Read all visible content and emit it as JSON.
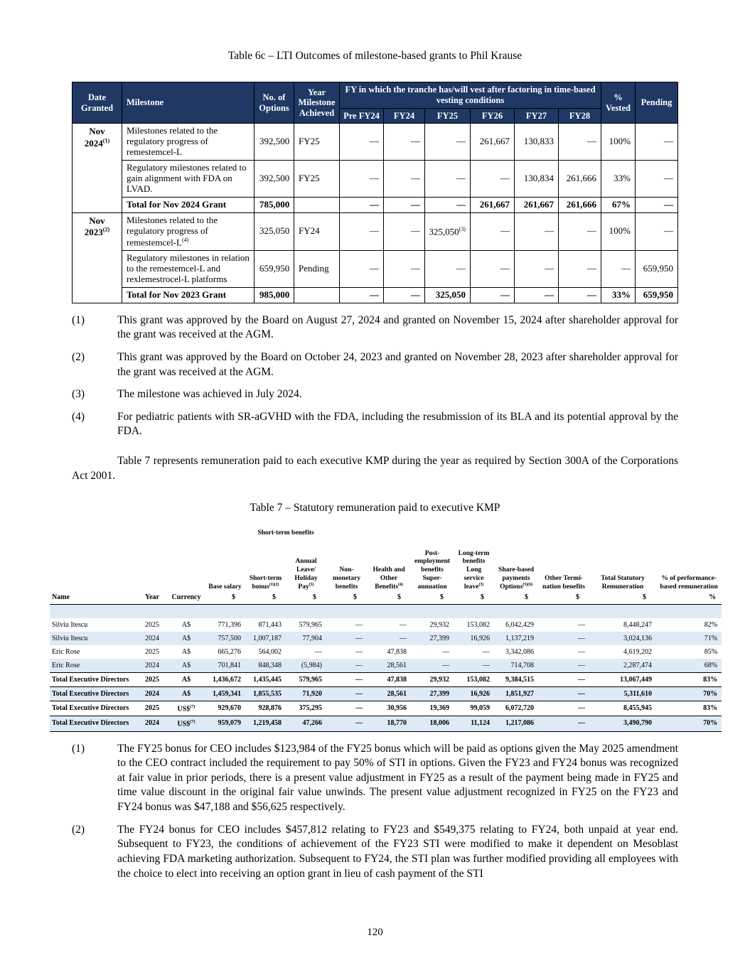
{
  "page_number": "120",
  "table6c": {
    "title": "Table 6c – LTI Outcomes of milestone-based grants to Phil Krause",
    "head": {
      "date_granted": "Date Granted",
      "milestone": "Milestone",
      "options": "No. of Options",
      "year_achieved": "Year Milestone Achieved",
      "vesting_span": "FY in which the tranche has/will vest after factoring in time-based vesting conditions",
      "fy_cols": [
        "Pre FY24",
        "FY24",
        "FY25",
        "FY26",
        "FY27",
        "FY28"
      ],
      "vested": "% Vested",
      "pending": "Pending"
    },
    "groups": [
      {
        "date": "Nov 2024",
        "date_sup": "(1)",
        "rows": [
          {
            "milestone": "Milestones related to the regulatory progress of remestemcel-L",
            "options": "392,500",
            "year": "FY25",
            "fy": [
              "—",
              "—",
              "—",
              "261,667",
              "130,833",
              "—"
            ],
            "vested": "100%",
            "pending": "—"
          },
          {
            "milestone": "Regulatory milestones related to gain alignment with FDA on LVAD.",
            "options": "392,500",
            "year": "FY25",
            "fy": [
              "—",
              "—",
              "—",
              "—",
              "130,834",
              "261,666"
            ],
            "vested": "33%",
            "pending": "—"
          }
        ],
        "total": {
          "label": "Total for Nov 2024 Grant",
          "options": "785,000",
          "fy": [
            "—",
            "—",
            "—",
            "261,667",
            "261,667",
            "261,666"
          ],
          "vested": "67%",
          "pending": "—"
        }
      },
      {
        "date": "Nov 2023",
        "date_sup": "(2)",
        "rows": [
          {
            "milestone": "Milestones related to the regulatory progress of remestemcel-L",
            "milestone_sup": "(4)",
            "options": "325,050",
            "year": "FY24",
            "fy": [
              "—",
              "—",
              {
                "v": "325,050",
                "sup": "(3)"
              },
              "—",
              "—",
              "—"
            ],
            "vested": "100%",
            "pending": "—"
          },
          {
            "milestone": "Regulatory milestones in relation to the remestemcel-L and rexlemestrocel-L platforms",
            "options": "659,950",
            "year": "Pending",
            "fy": [
              "—",
              "—",
              "—",
              "—",
              "—",
              "—"
            ],
            "vested": "—",
            "pending": "659,950"
          }
        ],
        "total": {
          "label": "Total for Nov 2023 Grant",
          "options": "985,000",
          "fy": [
            "—",
            "—",
            "325,050",
            "—",
            "—",
            "—"
          ],
          "vested": "33%",
          "pending": "659,950"
        }
      }
    ],
    "footnotes": [
      {
        "num": "(1)",
        "text": "This grant was approved by the Board on August 27, 2024 and granted on November 15, 2024 after shareholder approval for the grant was received at the AGM."
      },
      {
        "num": "(2)",
        "text": "This grant was approved by the Board on October 24, 2023 and granted on November 28, 2023 after shareholder approval for the grant was received at the AGM."
      },
      {
        "num": "(3)",
        "text": "The milestone was achieved in July 2024."
      },
      {
        "num": "(4)",
        "text": "For pediatric patients with SR-aGVHD with the FDA, including the resubmission of its BLA and its potential approval by the FDA."
      }
    ]
  },
  "intro_paragraph": "Table 7 represents remuneration paid to each executive KMP during the year as required by Section 300A of the Corporations Act 2001.",
  "table7": {
    "title": "Table 7 – Statutory remuneration paid to executive KMP",
    "group_header": "Short-term benefits",
    "name_header": "Name",
    "year_header": "Year",
    "currency_header": "Currency",
    "columns": [
      {
        "label": "Base salary",
        "sup": "",
        "unit": "$"
      },
      {
        "label": "Short-term bonus",
        "sup": "(1)(2)",
        "unit": "$"
      },
      {
        "label": "Annual Leave/ Holiday Pay",
        "sup": "(3)",
        "unit": "$"
      },
      {
        "label": "Non-monetary benefits",
        "sup": "",
        "unit": "$"
      },
      {
        "label": "Health and Other Benefits",
        "sup": "(4)",
        "unit": "$"
      },
      {
        "label": "Post-employment benefits Super-annuation",
        "sup": "",
        "unit": "$"
      },
      {
        "label": "Long-term benefits Long service leave",
        "sup": "(3)",
        "unit": "$"
      },
      {
        "label": "Share-based payments Options",
        "sup": "(5)(6)",
        "unit": "$"
      },
      {
        "label": "Other Termi-nation benefits",
        "sup": "",
        "unit": "$"
      },
      {
        "label": "Total Statutory Remuneration",
        "sup": "",
        "unit": "$"
      },
      {
        "label": "% of performance-based remuneration",
        "sup": "",
        "unit": "%"
      }
    ],
    "rows": [
      {
        "name": "Silviu Itescu",
        "year": "2025",
        "currency": "A$",
        "is_total": false,
        "values": [
          "771,396",
          "871,443",
          "579,965",
          "—",
          "—",
          "29,932",
          "153,082",
          "6,042,429",
          "—",
          "8,448,247",
          "82%"
        ]
      },
      {
        "name": "Silviu Itescu",
        "year": "2024",
        "currency": "A$",
        "is_total": false,
        "values": [
          "757,500",
          "1,007,187",
          "77,904",
          "—",
          "—",
          "27,399",
          "16,926",
          "1,137,219",
          "—",
          "3,024,136",
          "71%"
        ]
      },
      {
        "name": "Eric Rose",
        "year": "2025",
        "currency": "A$",
        "is_total": false,
        "values": [
          "665,276",
          "564,002",
          "—",
          "—",
          "47,838",
          "—",
          "—",
          "3,342,086",
          "—",
          "4,619,202",
          "85%"
        ]
      },
      {
        "name": "Eric Rose",
        "year": "2024",
        "currency": "A$",
        "is_total": false,
        "values": [
          "701,841",
          "848,348",
          "(5,984)",
          "—",
          "28,561",
          "—",
          "—",
          "714,708",
          "—",
          "2,287,474",
          "68%"
        ]
      },
      {
        "name": "Total Executive Directors",
        "year": "2025",
        "currency": "A$",
        "is_total": true,
        "values": [
          "1,436,672",
          "1,435,445",
          "579,965",
          "—",
          "47,838",
          "29,932",
          "153,082",
          "9,384,515",
          "—",
          "13,067,449",
          "83%"
        ]
      },
      {
        "name": "Total Executive Directors",
        "year": "2024",
        "currency": "A$",
        "is_total": true,
        "values": [
          "1,459,341",
          "1,855,535",
          "71,920",
          "—",
          "28,561",
          "27,399",
          "16,926",
          "1,851,927",
          "—",
          "5,311,610",
          "70%"
        ]
      },
      {
        "name": "Total Executive Directors",
        "year": "2025",
        "currency": "US$",
        "currency_sup": "(7)",
        "is_total": true,
        "values": [
          "929,670",
          "928,876",
          "375,295",
          "—",
          "30,956",
          "19,369",
          "99,059",
          "6,072,720",
          "—",
          "8,455,945",
          "83%"
        ]
      },
      {
        "name": "Total Executive Directors",
        "year": "2024",
        "currency": "US$",
        "currency_sup": "(7)",
        "is_total": true,
        "values": [
          "959,079",
          "1,219,458",
          "47,266",
          "—",
          "18,770",
          "18,006",
          "11,124",
          "1,217,086",
          "—",
          "3,490,790",
          "70%"
        ]
      }
    ],
    "footnotes": [
      {
        "num": "(1)",
        "text": "The FY25 bonus for CEO includes $123,984 of the FY25 bonus which will be paid as options given the May 2025 amendment to the CEO contract included the requirement to pay 50% of STI in options. Given the FY23 and FY24 bonus was recognized at fair value in prior periods, there is a present value adjustment in FY25 as a result of the payment being made in FY25 and time value discount in the original fair value unwinds. The present value adjustment recognized in FY25 on the FY23 and FY24 bonus was $47,188 and $56,625 respectively."
      },
      {
        "num": "(2)",
        "text": "The FY24 bonus for CEO includes $457,812 relating to FY23 and $549,375 relating to FY24, both unpaid at year end. Subsequent to FY23, the conditions of achievement of the FY23 STI were modified to make it dependent on Mesoblast achieving FDA marketing authorization. Subsequent to FY24, the STI plan was further modified providing all employees with the choice to elect into receiving an option grant in lieu of cash payment of the STI"
      }
    ]
  }
}
